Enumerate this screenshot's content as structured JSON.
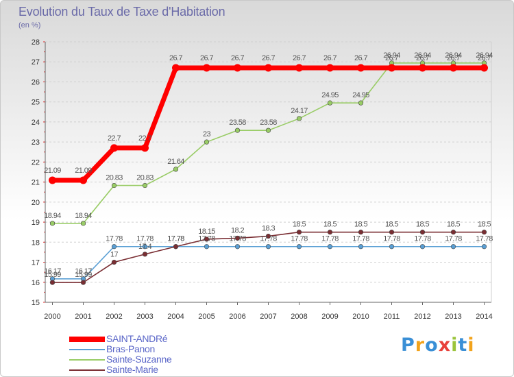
{
  "header": {
    "title": "Evolution du Taux de Taxe d'Habitation",
    "subtitle": "(en %)"
  },
  "logo": {
    "text": "Proxiti",
    "colors": [
      "#3a8fd6",
      "#f2a31b",
      "#3a8fd6",
      "#e8403a",
      "#9bc43c",
      "#3a8fd6",
      "#f2a31b"
    ]
  },
  "chart_data": {
    "type": "line",
    "title": "Evolution du Taux de Taxe d'Habitation",
    "subtitle": "(en %)",
    "xlabel": "",
    "ylabel": "",
    "ylim": [
      15,
      28
    ],
    "yticks": [
      "15",
      "16",
      "17",
      "18",
      "19",
      "20",
      "21",
      "22",
      "23",
      "24",
      "25",
      "26",
      "27",
      "28"
    ],
    "x": [
      "2000",
      "2001",
      "2002",
      "2003",
      "2004",
      "2005",
      "2006",
      "2007",
      "2008",
      "2009",
      "2010",
      "2011",
      "2012",
      "2013",
      "2014"
    ],
    "grid": "horizontal dashed",
    "legend_position": "bottom-left",
    "series": [
      {
        "name": "SAINT-ANDRé",
        "color": "#ff0000",
        "values": [
          21.09,
          21.09,
          22.7,
          22.7,
          26.7,
          26.7,
          26.7,
          26.7,
          26.7,
          26.7,
          26.7,
          26.7,
          26.7,
          26.7,
          26.7
        ],
        "labels": [
          "21.09",
          "21.09",
          "22.7",
          "22.7",
          "26.7",
          "26.7",
          "26.7",
          "26.7",
          "26.7",
          "26.7",
          "26.7",
          "26.7",
          "26.7",
          "26.7",
          "26.7"
        ]
      },
      {
        "name": "Bras-Panon",
        "color": "#5a9fd4",
        "values": [
          16.17,
          16.17,
          17.78,
          17.78,
          17.78,
          17.78,
          17.78,
          17.78,
          17.78,
          17.78,
          17.78,
          17.78,
          17.78,
          17.78,
          17.78
        ],
        "labels": [
          "16.17",
          "16.17",
          "17.78",
          "17.78",
          "17.78",
          "17.78",
          "17.78",
          "17.78",
          "17.78",
          "17.78",
          "17.78",
          "17.78",
          "17.78",
          "17.78",
          "17.78"
        ]
      },
      {
        "name": "Sainte-Suzanne",
        "color": "#99cc66",
        "values": [
          18.94,
          18.94,
          20.83,
          20.83,
          21.64,
          23,
          23.58,
          23.58,
          24.17,
          24.95,
          24.95,
          26.94,
          26.94,
          26.94,
          26.94
        ],
        "labels": [
          "18.94",
          "18.94",
          "20.83",
          "20.83",
          "21.64",
          "23",
          "23.58",
          "23.58",
          "24.17",
          "24.95",
          "24.95",
          "26.94",
          "26.94",
          "26.94",
          "26.94"
        ]
      },
      {
        "name": "Sainte-Marie",
        "color": "#7a2e33",
        "values": [
          15.99,
          15.99,
          17,
          17.4,
          17.78,
          18.15,
          18.2,
          18.3,
          18.5,
          18.5,
          18.5,
          18.5,
          18.5,
          18.5,
          18.5
        ],
        "labels": [
          "15.99",
          "15.99",
          "17",
          "17.4",
          "17.78",
          "18.15",
          "18.2",
          "18.3",
          "18.5",
          "18.5",
          "18.5",
          "18.5",
          "18.5",
          "18.5",
          "18.5"
        ]
      }
    ]
  }
}
